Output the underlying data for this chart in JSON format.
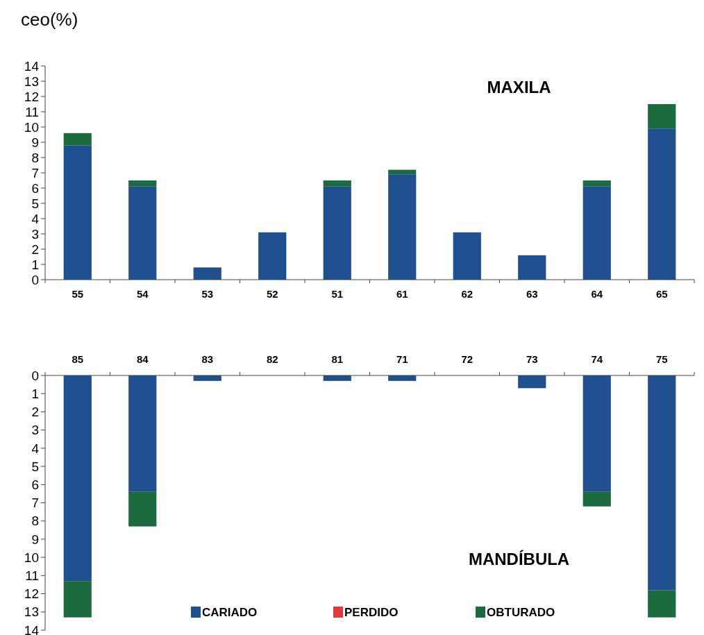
{
  "chart_data": [
    {
      "type": "bar",
      "title": "MAXILA",
      "ylabel": "ceo(%)",
      "stacked": true,
      "categories": [
        "55",
        "54",
        "53",
        "52",
        "51",
        "61",
        "62",
        "63",
        "64",
        "65"
      ],
      "series": [
        {
          "color": "#1f4f8f",
          "values": [
            8.8,
            6.1,
            0.8,
            3.1,
            6.1,
            6.9,
            3.1,
            1.6,
            6.1,
            9.9
          ]
        },
        {
          "color": "#e03a3a",
          "values": [
            0,
            0,
            0,
            0,
            0,
            0,
            0,
            0,
            0,
            0
          ]
        },
        {
          "color": "#1b6b3f",
          "values": [
            0.8,
            0.4,
            0,
            0,
            0.4,
            0.3,
            0,
            0,
            0.4,
            1.6
          ]
        }
      ],
      "ylim": [
        0,
        14
      ],
      "yticks": [
        0,
        1,
        2,
        3,
        4,
        5,
        6,
        7,
        8,
        9,
        10,
        11,
        12,
        13,
        14
      ]
    },
    {
      "type": "bar",
      "title": "MANDÍBULA",
      "stacked": true,
      "legend": "bottom",
      "categories": [
        "85",
        "84",
        "83",
        "82",
        "81",
        "71",
        "72",
        "73",
        "74",
        "75"
      ],
      "series": [
        {
          "name": "CARIADO",
          "color": "#1f4f8f",
          "values": [
            11.3,
            6.4,
            0.3,
            0,
            0.3,
            0.3,
            0,
            0.7,
            6.4,
            11.8
          ]
        },
        {
          "name": "PERDIDO",
          "color": "#e03a3a",
          "values": [
            0,
            0,
            0,
            0,
            0,
            0,
            0,
            0,
            0,
            0
          ]
        },
        {
          "name": "OBTURADO",
          "color": "#1b6b3f",
          "values": [
            2.0,
            1.9,
            0,
            0,
            0,
            0,
            0,
            0,
            0.8,
            1.5
          ]
        }
      ],
      "ylim": [
        14,
        0
      ],
      "yticks": [
        0,
        1,
        2,
        3,
        4,
        5,
        6,
        7,
        8,
        9,
        10,
        11,
        12,
        13,
        14
      ]
    }
  ]
}
